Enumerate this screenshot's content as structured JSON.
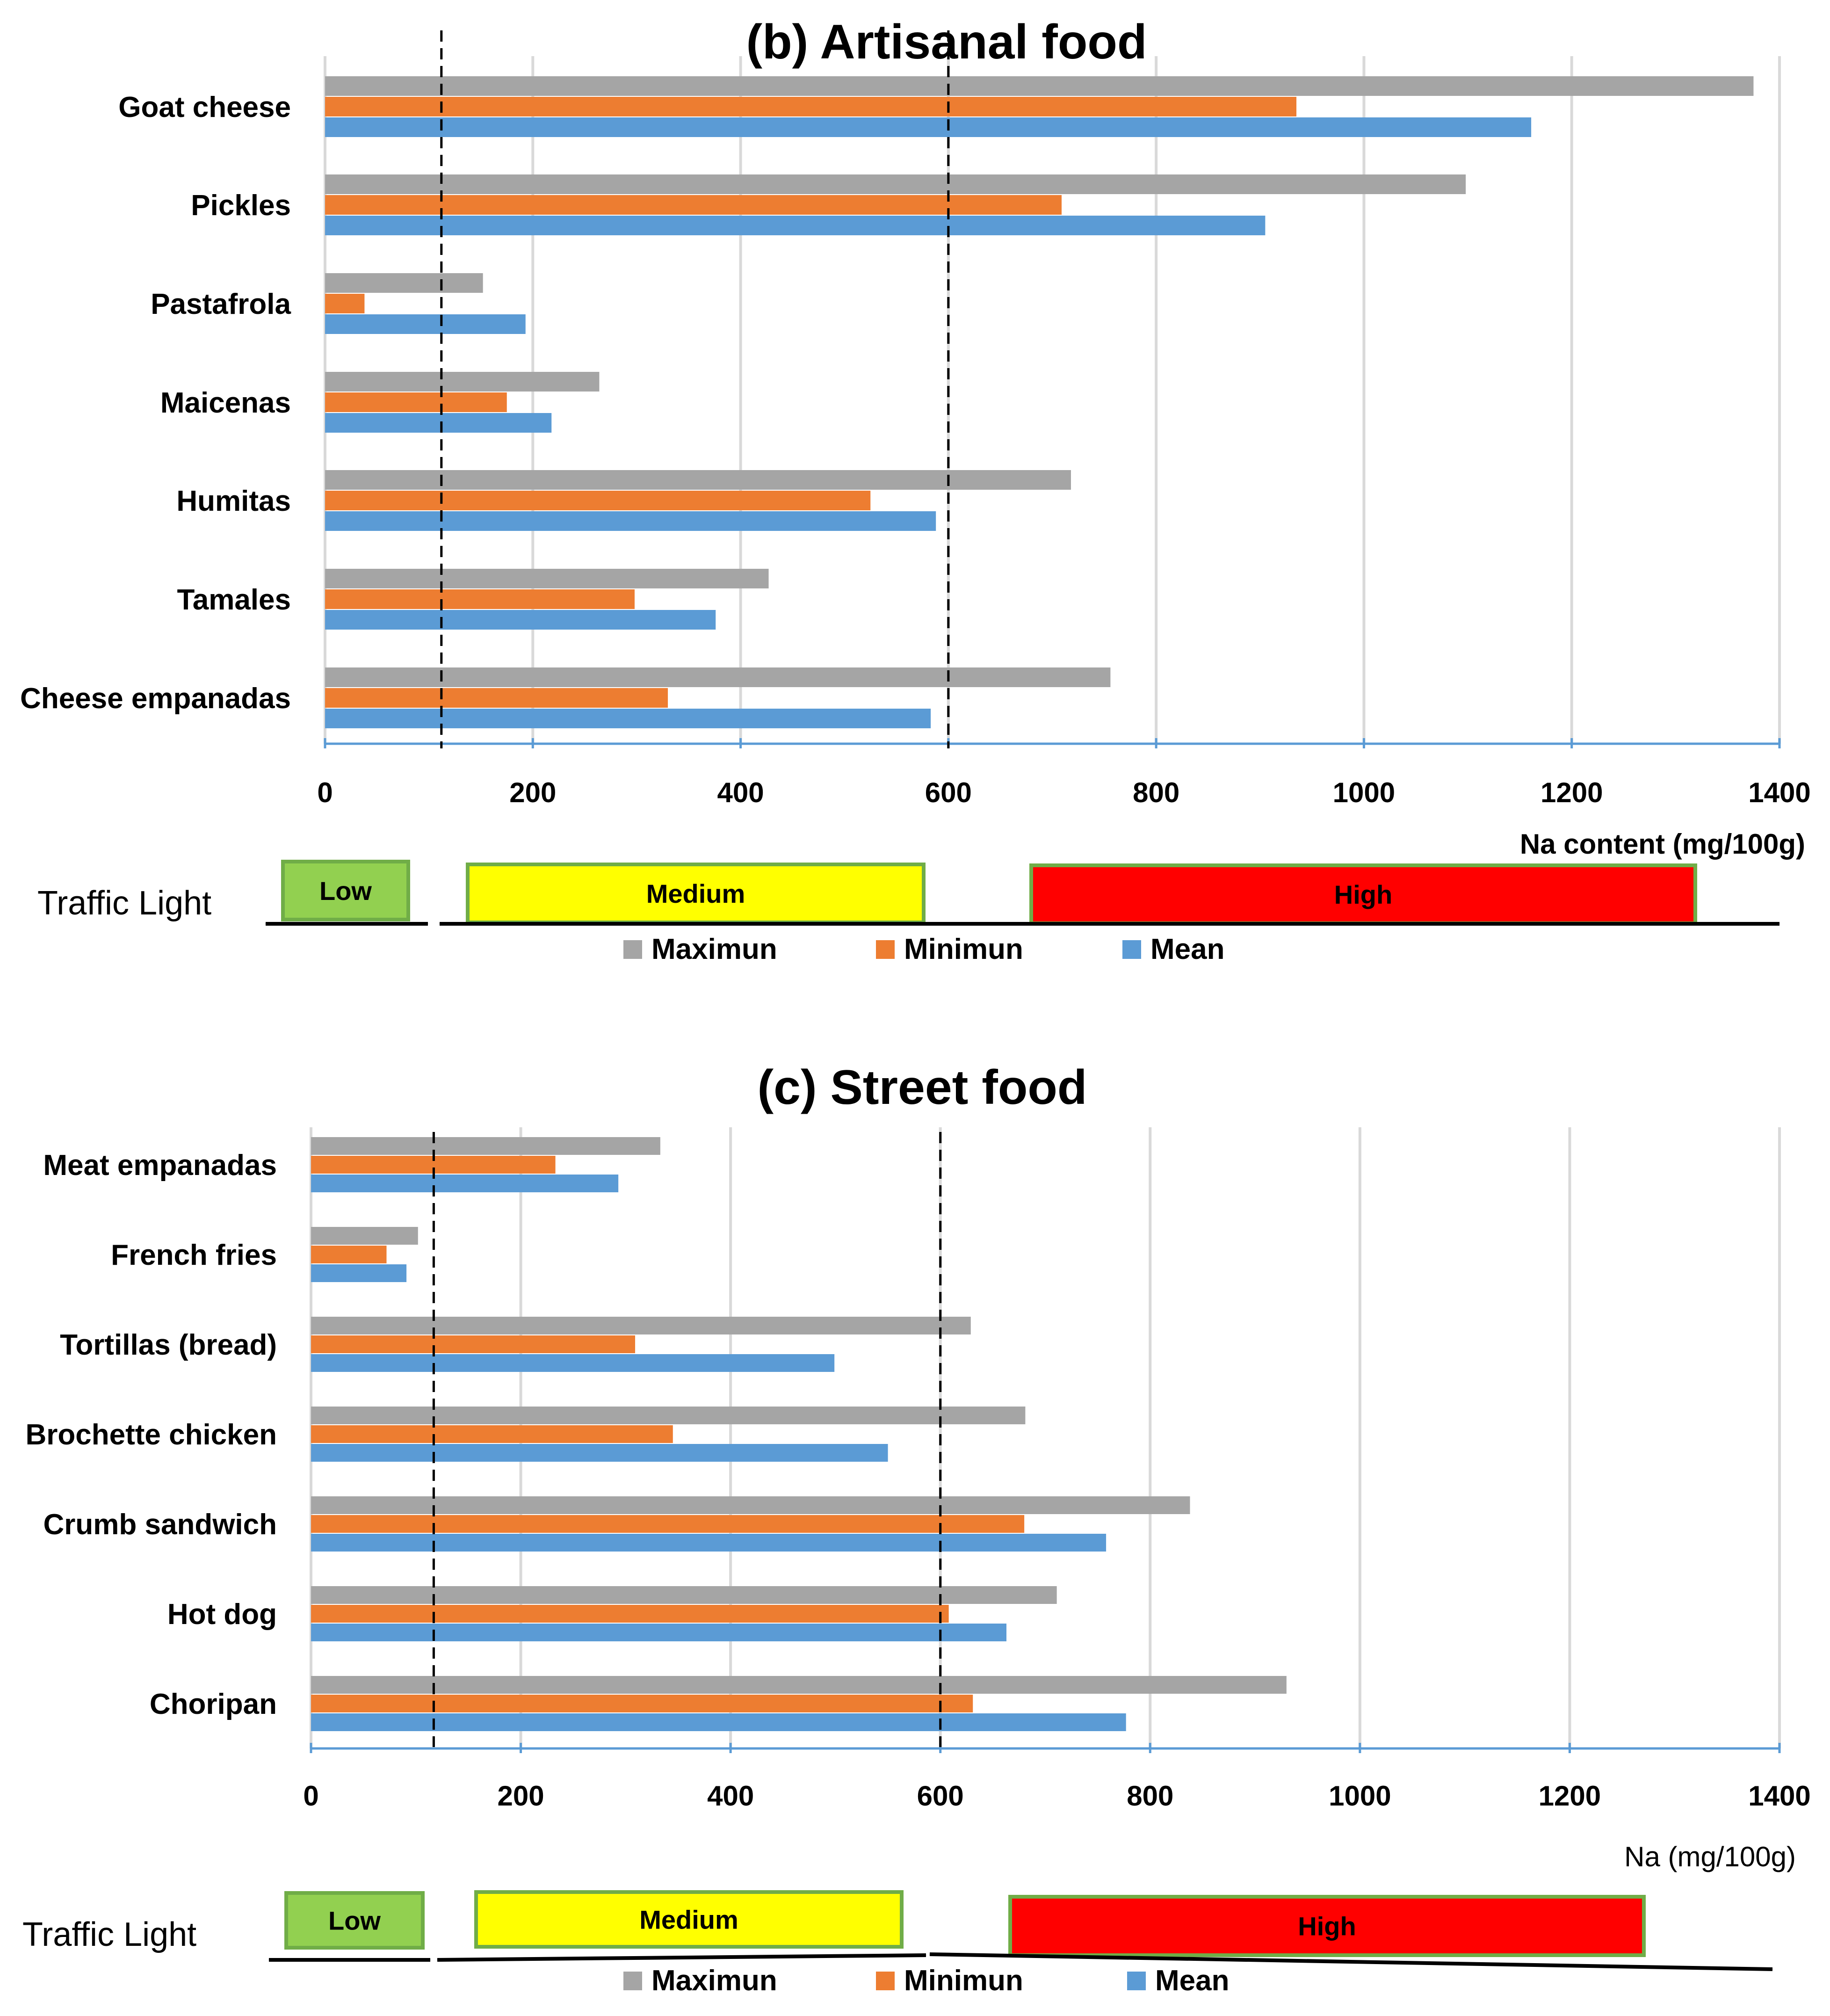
{
  "chart_data": [
    {
      "id": "b",
      "type": "bar",
      "orientation": "horizontal",
      "title": "(b) Artisanal food",
      "xlabel": "Na content (mg/100g)",
      "xlim": [
        0,
        1400
      ],
      "xticks": [
        "0",
        "200",
        "400",
        "600",
        "800",
        "1000",
        "1200",
        "1400"
      ],
      "categories": [
        "Goat cheese",
        "Pickles",
        "Pastafrola",
        "Maicenas",
        "Humitas",
        "Tamales",
        "Cheese empanadas"
      ],
      "series": [
        {
          "name": "Maximun",
          "color": "#A5A5A5",
          "values": [
            1375,
            1098,
            152,
            264,
            718,
            427,
            756
          ]
        },
        {
          "name": "Minimun",
          "color": "#ED7D31",
          "values": [
            935,
            709,
            38,
            175,
            525,
            298,
            330
          ]
        },
        {
          "name": "Mean",
          "color": "#5B9BD5",
          "values": [
            1161,
            905,
            193,
            218,
            588,
            376,
            583
          ]
        }
      ],
      "reference_lines": [
        112,
        600
      ],
      "traffic_light": {
        "title": "Traffic Light",
        "bands": [
          {
            "label": "Low",
            "color": "#92D050"
          },
          {
            "label": "Medium",
            "color": "#FFFF00"
          },
          {
            "label": "High",
            "color": "#FF0000"
          }
        ]
      }
    },
    {
      "id": "c",
      "type": "bar",
      "orientation": "horizontal",
      "title": "(c) Street  food",
      "xlabel": "Na (mg/100g)",
      "xlim": [
        0,
        1400
      ],
      "xticks": [
        "0",
        "200",
        "400",
        "600",
        "800",
        "1000",
        "1200",
        "1400"
      ],
      "categories": [
        "Meat empanadas",
        "French fries",
        "Tortillas (bread)",
        "Brochette chicken",
        "Crumb sandwich",
        "Hot dog",
        "Choripan"
      ],
      "series": [
        {
          "name": "Maximun",
          "color": "#A5A5A5",
          "values": [
            333,
            102,
            629,
            681,
            838,
            711,
            930
          ]
        },
        {
          "name": "Minimun",
          "color": "#ED7D31",
          "values": [
            233,
            72,
            309,
            345,
            680,
            608,
            631
          ]
        },
        {
          "name": "Mean",
          "color": "#5B9BD5",
          "values": [
            293,
            91,
            499,
            550,
            758,
            663,
            777
          ]
        }
      ],
      "reference_lines": [
        117,
        600
      ],
      "traffic_light": {
        "title": "Traffic Light",
        "bands": [
          {
            "label": "Low",
            "color": "#92D050"
          },
          {
            "label": "Medium",
            "color": "#FFFF00"
          },
          {
            "label": "High",
            "color": "#FF0000"
          }
        ]
      }
    }
  ]
}
